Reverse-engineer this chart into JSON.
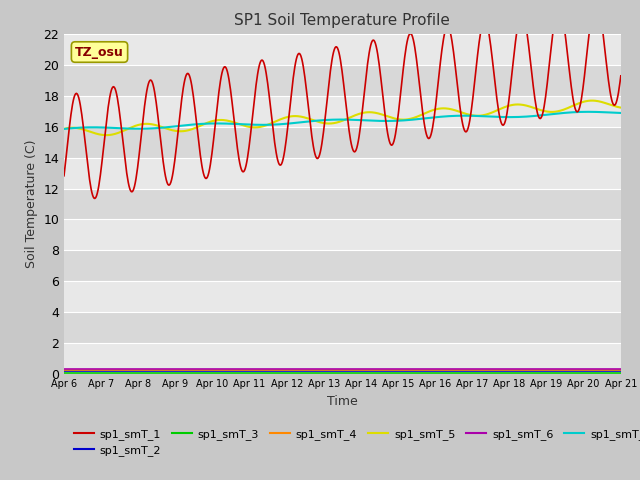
{
  "title": "SP1 Soil Temperature Profile",
  "xlabel": "Time",
  "ylabel": "Soil Temperature (C)",
  "annotation": "TZ_osu",
  "ylim": [
    0,
    22
  ],
  "x_tick_labels": [
    "Apr 6",
    "Apr 7",
    "Apr 8",
    "Apr 9",
    "Apr 10",
    "Apr 11",
    "Apr 12",
    "Apr 13",
    "Apr 14",
    "Apr 15",
    "Apr 16",
    "Apr 17",
    "Apr 18",
    "Apr 19",
    "Apr 20",
    "Apr 21"
  ],
  "series_colors": {
    "sp1_smT_1": "#cc0000",
    "sp1_smT_2": "#0000cc",
    "sp1_smT_3": "#00cc00",
    "sp1_smT_4": "#ff8800",
    "sp1_smT_5": "#dddd00",
    "sp1_smT_6": "#aa00aa",
    "sp1_smT_7": "#00cccc"
  },
  "fig_bg_color": "#c8c8c8",
  "plot_bg_light": "#e8e8e8",
  "plot_bg_dark": "#d8d8d8",
  "annotation_bg": "#ffff99",
  "annotation_border": "#999900",
  "annotation_text_color": "#880000",
  "grid_color": "#ffffff",
  "ytick_fontsize": 9,
  "xtick_fontsize": 7,
  "title_fontsize": 11,
  "label_fontsize": 9,
  "legend_fontsize": 8
}
